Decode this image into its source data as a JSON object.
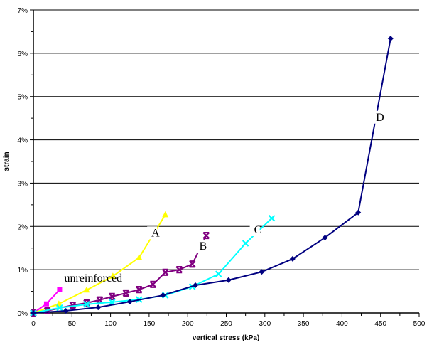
{
  "chart_data": {
    "type": "line",
    "title": "",
    "xlabel": "vertical stress (kPa)",
    "ylabel": "strain",
    "xlim": [
      0,
      500
    ],
    "ylim": [
      0,
      7
    ],
    "x_ticks": [
      "0",
      "50",
      "100",
      "150",
      "200",
      "250",
      "300",
      "350",
      "400",
      "450",
      "500"
    ],
    "y_ticks": [
      "0%",
      "1%",
      "2%",
      "3%",
      "4%",
      "5%",
      "6%",
      "7%"
    ],
    "grid": "horizontal",
    "series": [
      {
        "name": "unreinforced",
        "color": "#FF00FF",
        "marker": "square",
        "x": [
          0,
          17,
          34
        ],
        "y": [
          0,
          0.21,
          0.54
        ]
      },
      {
        "name": "A",
        "color": "#FFFF00",
        "marker": "triangle",
        "x": [
          0,
          33,
          69,
          103,
          137,
          171
        ],
        "y": [
          0,
          0.21,
          0.53,
          0.85,
          1.28,
          2.27
        ]
      },
      {
        "name": "B",
        "color": "#800080",
        "marker": "star",
        "x": [
          0,
          18,
          51,
          69,
          86,
          102,
          120,
          137,
          155,
          171,
          189,
          206,
          224
        ],
        "y": [
          0,
          0.05,
          0.18,
          0.23,
          0.3,
          0.38,
          0.46,
          0.54,
          0.66,
          0.94,
          1.0,
          1.13,
          1.79
        ]
      },
      {
        "name": "C",
        "color": "#00FFFF",
        "marker": "x",
        "x": [
          0,
          34,
          69,
          102,
          137,
          171,
          206,
          240,
          275,
          309
        ],
        "y": [
          0,
          0.12,
          0.2,
          0.25,
          0.31,
          0.41,
          0.61,
          0.9,
          1.61,
          2.19
        ]
      },
      {
        "name": "D",
        "color": "#000080",
        "marker": "diamond",
        "x": [
          0,
          42,
          84,
          125,
          168,
          210,
          253,
          296,
          336,
          378,
          421,
          463
        ],
        "y": [
          0,
          0.05,
          0.13,
          0.26,
          0.41,
          0.64,
          0.76,
          0.95,
          1.25,
          1.74,
          2.32,
          6.34
        ]
      }
    ],
    "annotations": [
      {
        "text": "unreinforced",
        "x": 40,
        "y": 0.72
      },
      {
        "text": "A",
        "x": 153,
        "y": 1.77
      },
      {
        "text": "B",
        "x": 215,
        "y": 1.46
      },
      {
        "text": "C",
        "x": 286,
        "y": 1.84
      },
      {
        "text": "D",
        "x": 444,
        "y": 4.44
      }
    ],
    "legend": "none"
  }
}
